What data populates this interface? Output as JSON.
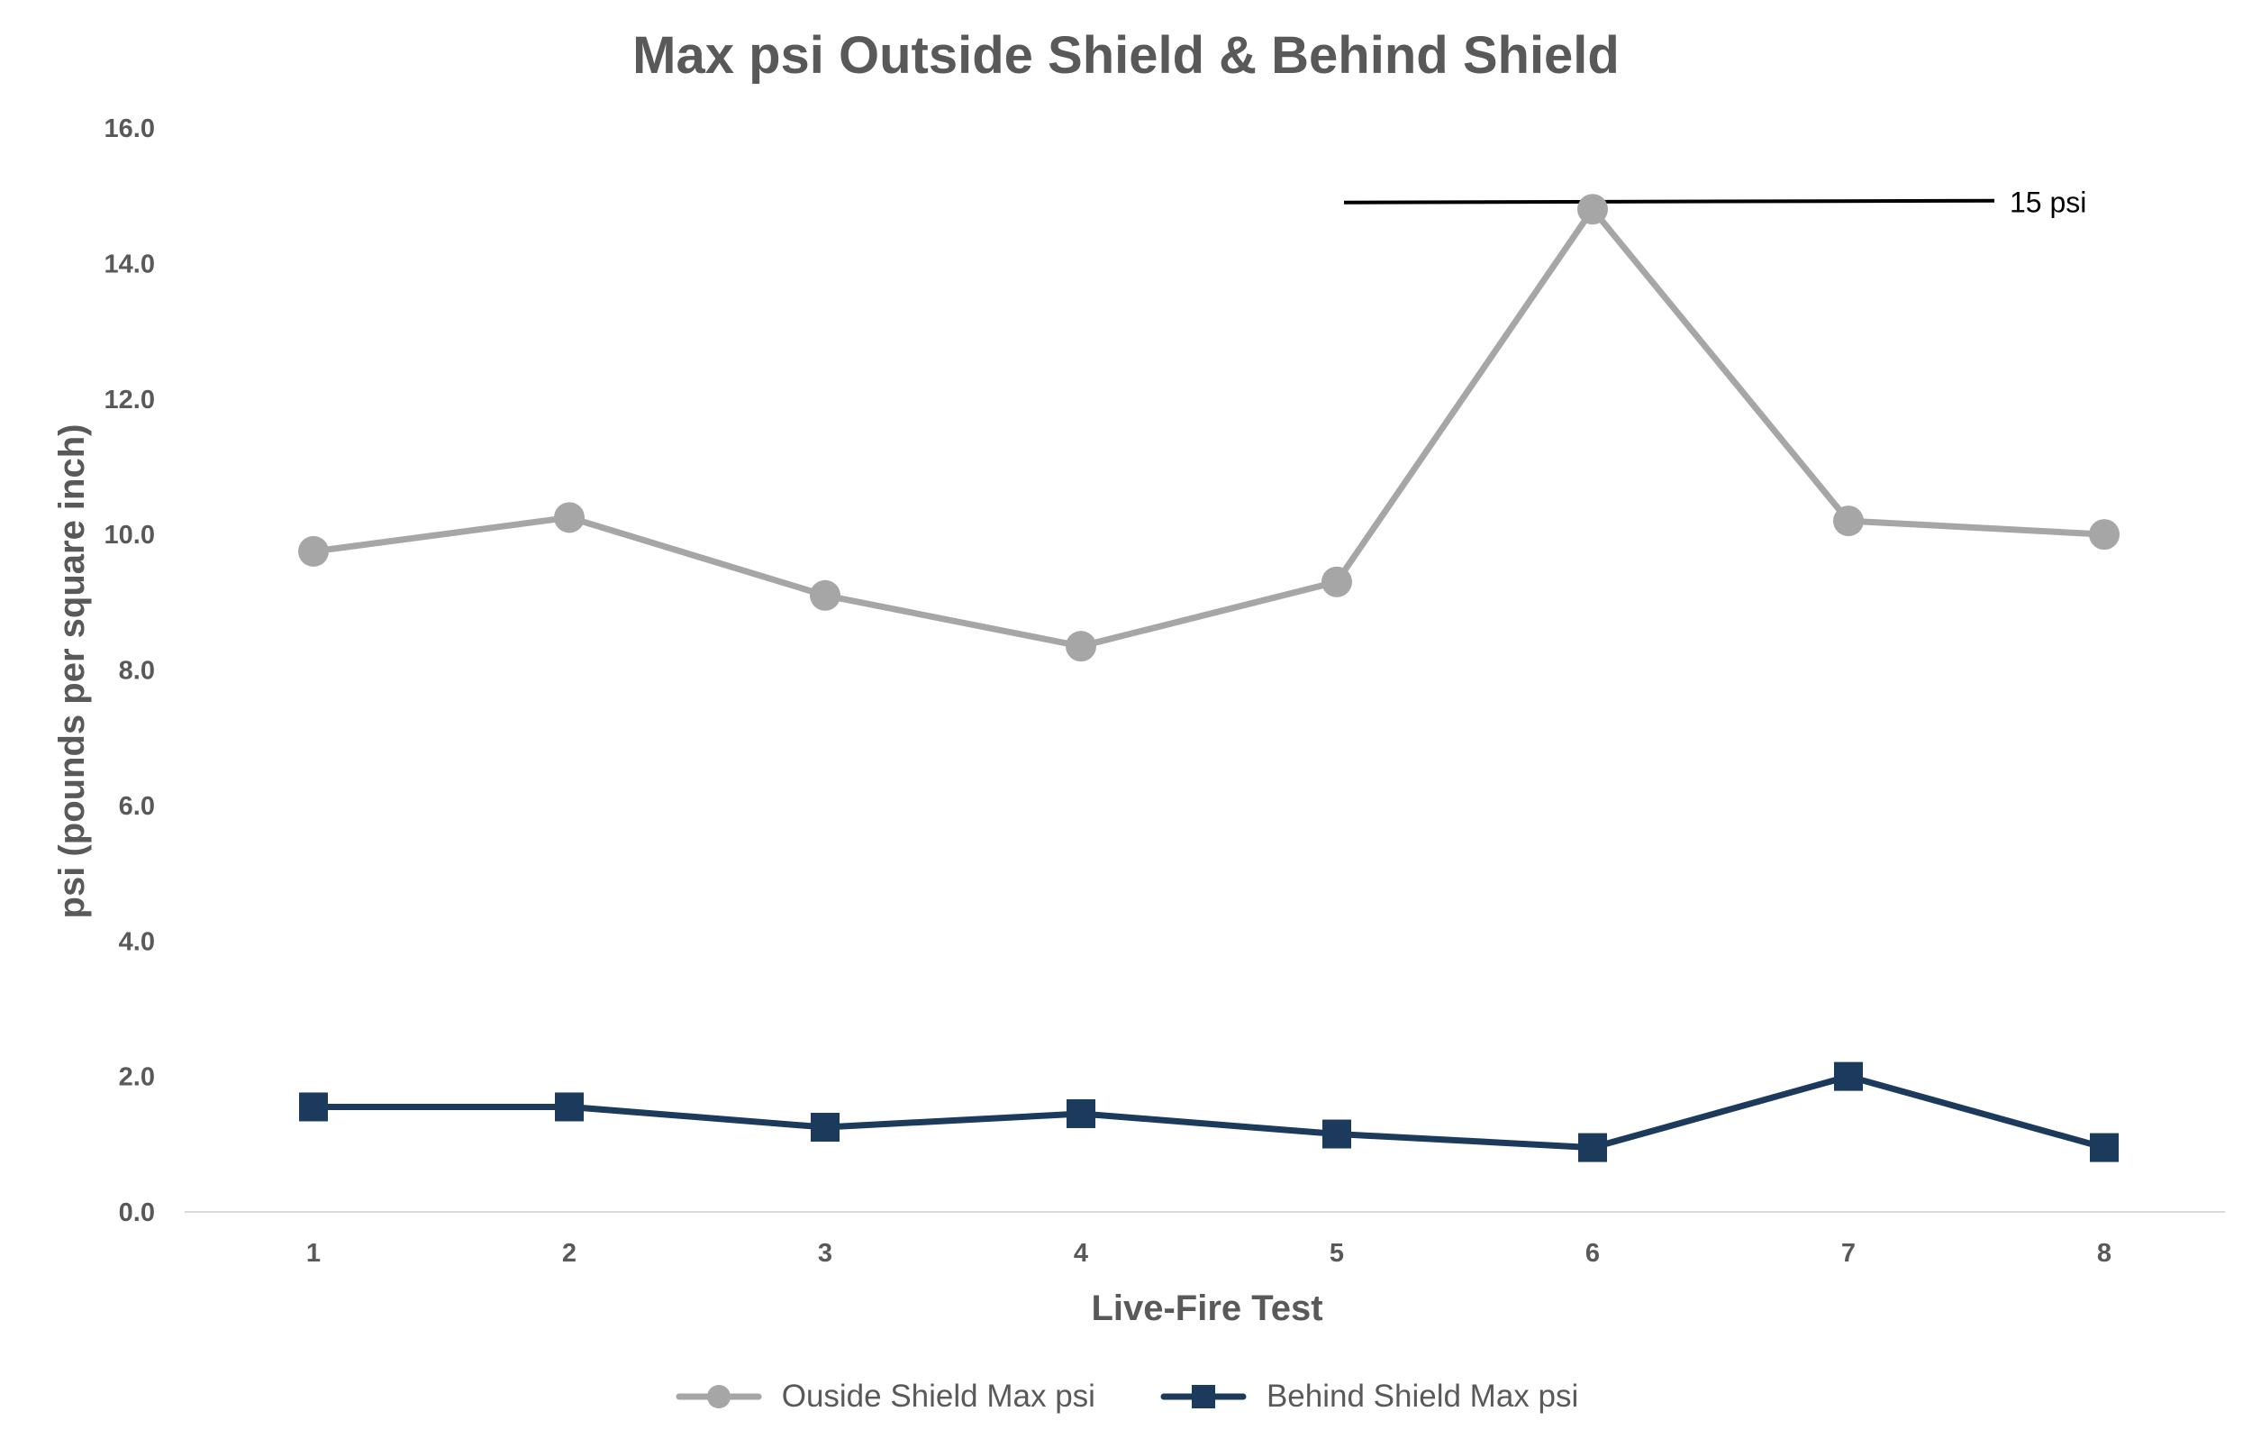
{
  "chart_data": {
    "type": "line",
    "title": "Max psi Outside Shield & Behind Shield",
    "xlabel": "Live-Fire Test",
    "ylabel": "psi (pounds per square inch)",
    "categories": [
      "1",
      "2",
      "3",
      "4",
      "5",
      "6",
      "7",
      "8"
    ],
    "ylim": [
      0,
      16
    ],
    "yticks": [
      "0.0",
      "2.0",
      "4.0",
      "6.0",
      "8.0",
      "10.0",
      "12.0",
      "14.0",
      "16.0"
    ],
    "grid": false,
    "legend_position": "bottom",
    "series": [
      {
        "name": "Ouside Shield Max psi",
        "color": "#a6a6a6",
        "marker": "circle",
        "values": [
          9.75,
          10.25,
          9.1,
          8.35,
          9.3,
          14.8,
          10.2,
          10.0
        ]
      },
      {
        "name": "Behind Shield Max psi",
        "color": "#1b3a5c",
        "marker": "square",
        "values": [
          1.55,
          1.55,
          1.25,
          1.45,
          1.15,
          0.95,
          2.0,
          0.95
        ]
      }
    ],
    "annotations": [
      {
        "type": "reference-line",
        "y": 14.9,
        "x_from": "5",
        "x_to": "8",
        "label": "15 psi"
      }
    ]
  }
}
